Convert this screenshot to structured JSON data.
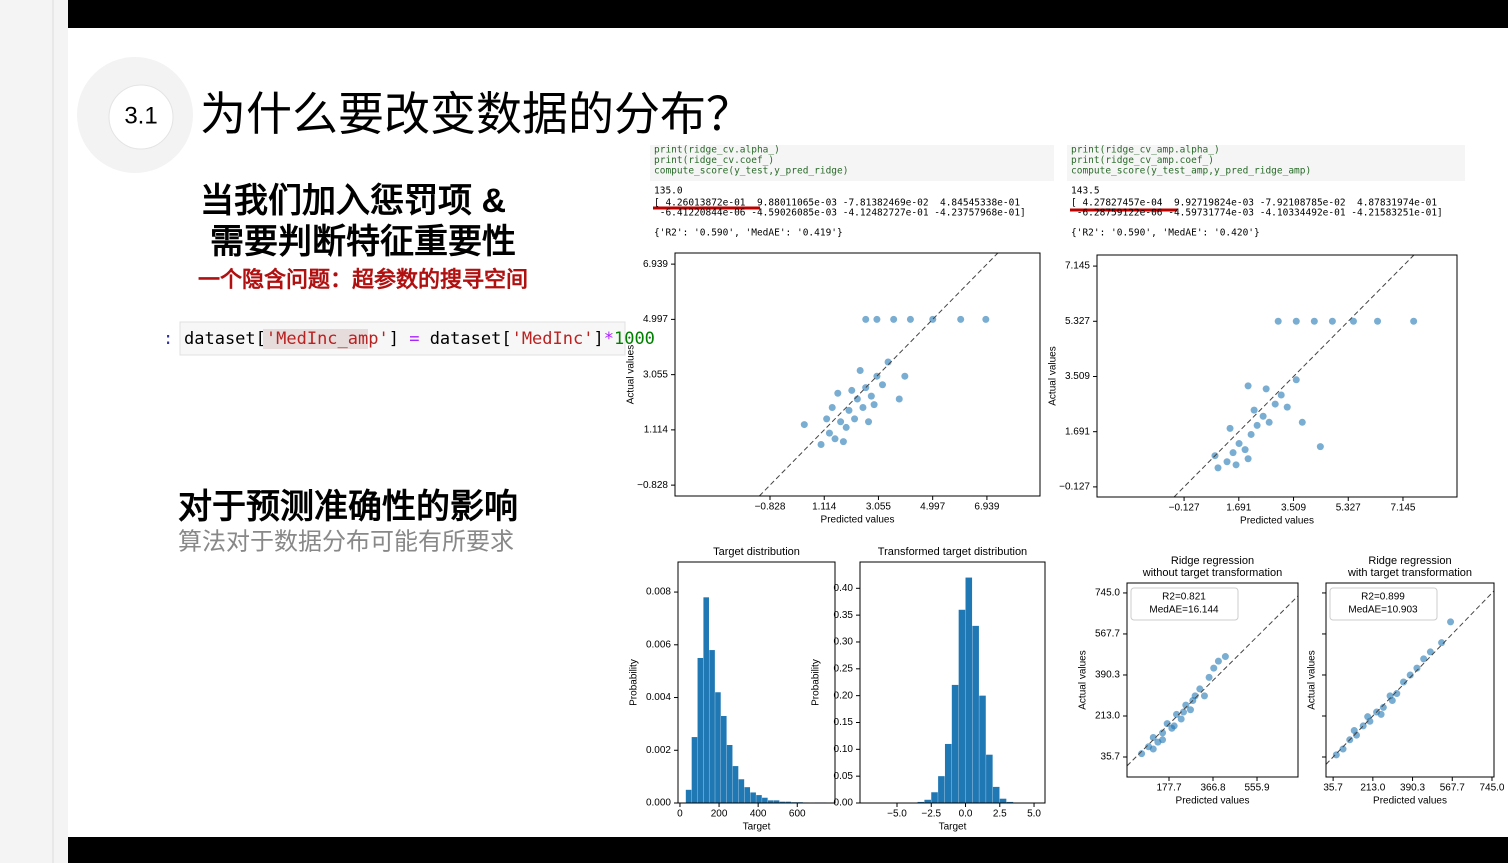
{
  "slide": {
    "number": "3.1",
    "title": "为什么要改变数据的分布？",
    "heading1": [
      "当我们加入惩罚项 &",
      "需要判断特征重要性"
    ],
    "note1": "一个隐含问题：超参数的搜寻空间",
    "code_prompt": ":",
    "code": [
      "dataset[",
      "'MedInc_amp'",
      "] ",
      "=",
      " dataset[",
      "'MedInc'",
      "]",
      "*",
      "1000"
    ],
    "heading2": "对于预测准确性的影响",
    "note2": "算法对于数据分布可能有所要求"
  },
  "notebook": [
    {
      "code": [
        "print(ridge_cv.alpha_)",
        "print(ridge_cv.coef_)",
        "compute_score(y_test,y_pred_ridge)"
      ],
      "output": [
        "135.0",
        "[ 4.26013872e-01  9.88011065e-03 -7.81382469e-02  4.84545338e-01",
        " -6.41220844e-06 -4.59026085e-03 -4.12482727e-01 -4.23757968e-01]",
        "{'R2': '0.590', 'MedAE': '0.419'}"
      ]
    },
    {
      "code": [
        "print(ridge_cv_amp.alpha_)",
        "print(ridge_cv_amp.coef_)",
        "compute_score(y_test_amp,y_pred_ridge_amp)"
      ],
      "output": [
        "143.5",
        "[ 4.27827457e-04  9.92719824e-03 -7.92108785e-02  4.87831974e-01",
        " -6.28759122e-06 -4.59731774e-03 -4.10334492e-01 -4.21583251e-01]",
        "{'R2': '0.590', 'MedAE': '0.420'}"
      ]
    }
  ],
  "chart_data": [
    {
      "type": "scatter",
      "xlabel": "Predicted values",
      "ylabel": "Actual values",
      "color": "#1f77b4",
      "diagonal": true,
      "xlim": [
        -4.23,
        8.84
      ],
      "ylim": [
        -1.21,
        7.33
      ],
      "xticks": [
        {
          "value": -0.828,
          "label": "−0.828"
        },
        1.114,
        3.055,
        4.997,
        6.939
      ],
      "yticks": [
        {
          "value": -0.828,
          "label": "−0.828"
        },
        1.114,
        3.055,
        4.997,
        6.939
      ],
      "x": [
        1.0,
        1.3,
        1.5,
        1.7,
        1.9,
        2.0,
        2.2,
        2.3,
        2.5,
        2.6,
        2.8,
        3.0,
        3.2,
        1.4,
        1.8,
        2.4,
        3.4,
        2.1,
        1.2,
        2.7,
        0.4,
        4.0,
        3.0,
        3.6,
        4.2,
        5.0,
        6.0,
        6.9,
        2.6,
        1.6,
        2.9,
        3.8
      ],
      "values": [
        0.6,
        1.0,
        0.8,
        1.4,
        1.2,
        1.8,
        1.5,
        2.2,
        1.9,
        2.6,
        2.3,
        3.0,
        2.7,
        1.9,
        0.7,
        3.2,
        3.5,
        2.5,
        1.5,
        1.4,
        1.3,
        3.0,
        4.997,
        4.997,
        4.997,
        4.997,
        4.997,
        4.997,
        4.997,
        2.4,
        2.0,
        2.2
      ]
    },
    {
      "type": "scatter",
      "xlabel": "Predicted values",
      "ylabel": "Actual values",
      "color": "#1f77b4",
      "diagonal": true,
      "xlim": [
        -3.02,
        8.94
      ],
      "ylim": [
        -0.46,
        7.51
      ],
      "xticks": [
        {
          "value": -0.127,
          "label": "−0.127"
        },
        1.691,
        3.509,
        5.327,
        7.145
      ],
      "yticks": [
        {
          "value": -0.127,
          "label": "−0.127"
        },
        1.691,
        3.509,
        5.327,
        7.145
      ],
      "x": [
        1.0,
        1.3,
        1.5,
        1.7,
        1.9,
        2.1,
        2.3,
        2.5,
        2.7,
        2.9,
        3.1,
        3.3,
        1.4,
        2.0,
        2.6,
        3.6,
        2.2,
        0.9,
        4.4,
        3.0,
        3.6,
        4.2,
        4.8,
        5.5,
        6.3,
        7.5,
        2.0,
        3.8,
        1.6
      ],
      "values": [
        0.5,
        0.7,
        1.0,
        1.3,
        1.1,
        1.6,
        1.9,
        2.2,
        2.0,
        2.6,
        2.9,
        2.5,
        1.8,
        0.8,
        3.1,
        3.4,
        2.4,
        0.9,
        1.2,
        5.327,
        5.327,
        5.327,
        5.327,
        5.327,
        5.327,
        5.327,
        3.2,
        2.0,
        0.6
      ]
    },
    {
      "type": "histogram",
      "title": "Target distribution",
      "xlabel": "Target",
      "ylabel": "Probability",
      "color": "#1f77b4",
      "xlim": [
        -10,
        793
      ],
      "ylim": [
        0,
        0.00914
      ],
      "xticks": [
        0,
        200,
        400,
        600
      ],
      "yticks": [
        {
          "value": 0,
          "label": "0.000"
        },
        0.002,
        0.004,
        0.006,
        0.008
      ],
      "bins": [
        30,
        60,
        90,
        120,
        150,
        180,
        210,
        240,
        270,
        300,
        330,
        360,
        390,
        420,
        450,
        480,
        510,
        540,
        570,
        600,
        630,
        660,
        690,
        720,
        750
      ],
      "values": [
        0.0005,
        0.0025,
        0.0055,
        0.0078,
        0.0058,
        0.0042,
        0.0033,
        0.0022,
        0.0014,
        0.0009,
        0.0006,
        0.0004,
        0.0003,
        0.0002,
        0.0001,
        0.0001,
        5e-05,
        5e-05,
        3e-05,
        3e-05,
        2e-05,
        0,
        2e-05,
        2e-05
      ]
    },
    {
      "type": "histogram",
      "title": "Transformed target distribution",
      "xlabel": "Target",
      "ylabel": "Probability",
      "color": "#1f77b4",
      "xlim": [
        -7.7,
        5.8
      ],
      "ylim": [
        0,
        0.449
      ],
      "xticks": [
        {
          "value": -5,
          "label": "−5.0"
        },
        {
          "value": -2.5,
          "label": "−2.5"
        },
        {
          "value": 0,
          "label": "0.0"
        },
        2.5,
        {
          "value": 5,
          "label": "5.0"
        }
      ],
      "yticks": [
        {
          "value": 0,
          "label": "0.00"
        },
        0.05,
        {
          "value": 0.1,
          "label": "0.10"
        },
        0.15,
        {
          "value": 0.2,
          "label": "0.20"
        },
        0.25,
        {
          "value": 0.3,
          "label": "0.30"
        },
        0.35,
        {
          "value": 0.4,
          "label": "0.40"
        }
      ],
      "bins": [
        -3.5,
        -3,
        -2.5,
        -2,
        -1.5,
        -1,
        -0.5,
        0,
        0.5,
        1,
        1.5,
        2,
        2.5,
        3,
        3.5
      ],
      "values": [
        0.002,
        0.006,
        0.02,
        0.05,
        0.11,
        0.22,
        0.36,
        0.42,
        0.33,
        0.2,
        0.09,
        0.03,
        0.008,
        0.002
      ]
    },
    {
      "type": "scatter",
      "title": [
        "Ridge regression",
        "without target transformation"
      ],
      "xlabel": "Predicted values",
      "ylabel": "Actual values",
      "color": "#1f77b4",
      "diagonal": true,
      "annotations": [
        "R2=0.821",
        "MedAE=16.144"
      ],
      "xlim": [
        -2.8,
        732
      ],
      "ylim": [
        -50.8,
        788
      ],
      "xticks": [
        177.7,
        366.8,
        555.9
      ],
      "yticks": [
        35.7,
        {
          "value": 213,
          "label": "213.0"
        },
        390.3,
        567.7,
        {
          "value": 745,
          "label": "745.0"
        }
      ],
      "x": [
        60,
        90,
        110,
        130,
        150,
        170,
        190,
        210,
        230,
        250,
        270,
        290,
        310,
        330,
        350,
        370,
        390,
        420,
        150,
        200,
        240,
        280,
        110
      ],
      "values": [
        50,
        80,
        120,
        100,
        140,
        180,
        160,
        220,
        200,
        260,
        240,
        300,
        330,
        300,
        380,
        420,
        450,
        470,
        110,
        170,
        230,
        280,
        70
      ]
    },
    {
      "type": "scatter",
      "title": [
        "Ridge regression",
        "with target transformation"
      ],
      "xlabel": "Predicted values",
      "ylabel": "Actual values",
      "color": "#1f77b4",
      "diagonal": true,
      "annotations": [
        "R2=0.899",
        "MedAE=10.903"
      ],
      "show_ytick_labels": false,
      "xlim": [
        3.9,
        754
      ],
      "ylim": [
        -50.8,
        788
      ],
      "xticks": [
        35.7,
        {
          "value": 213,
          "label": "213.0"
        },
        390.3,
        567.7,
        {
          "value": 745,
          "label": "745.0"
        }
      ],
      "yticks": [
        35.7,
        213,
        390.3,
        567.7,
        745
      ],
      "x": [
        50,
        80,
        110,
        140,
        170,
        200,
        230,
        260,
        290,
        320,
        350,
        380,
        410,
        440,
        470,
        520,
        130,
        190,
        250,
        300,
        560
      ],
      "values": [
        45,
        70,
        110,
        130,
        170,
        190,
        230,
        250,
        300,
        310,
        360,
        390,
        420,
        460,
        490,
        530,
        150,
        210,
        220,
        280,
        620
      ]
    }
  ]
}
